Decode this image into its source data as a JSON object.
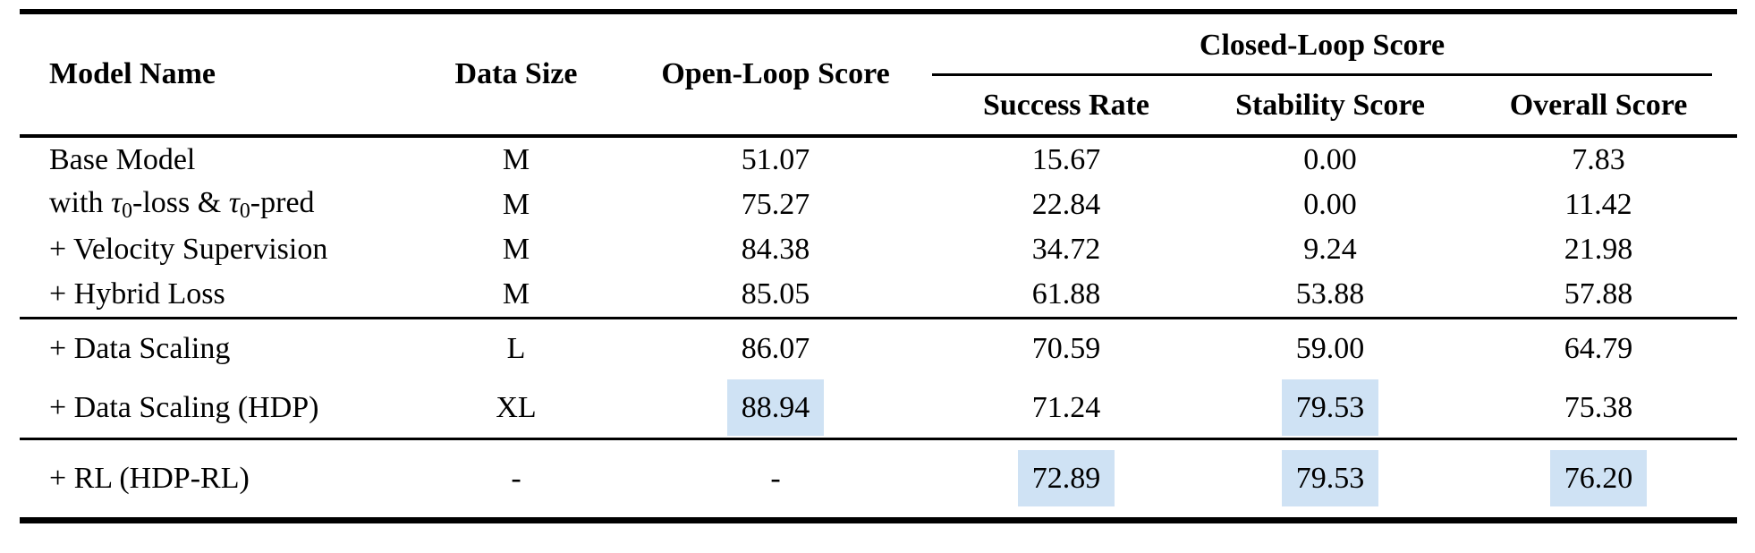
{
  "table": {
    "columns": [
      "Model Name",
      "Data Size",
      "Open-Loop Score"
    ],
    "spanner": "Closed-Loop Score",
    "sub_columns": [
      "Success Rate",
      "Stability Score",
      "Overall Score"
    ],
    "highlight_color": "#cfe2f4",
    "groups": [
      {
        "rows": [
          {
            "model": [
              {
                "t": "Base Model"
              }
            ],
            "cells": [
              {
                "value": "M"
              },
              {
                "value": "51.07"
              },
              {
                "value": "15.67"
              },
              {
                "value": "0.00"
              },
              {
                "value": "7.83"
              }
            ]
          },
          {
            "model": [
              {
                "t": "with "
              },
              {
                "t": "τ",
                "style": "tau"
              },
              {
                "t": "0",
                "style": "sub"
              },
              {
                "t": "-loss & "
              },
              {
                "t": "τ",
                "style": "tau"
              },
              {
                "t": "0",
                "style": "sub"
              },
              {
                "t": "-pred"
              }
            ],
            "cells": [
              {
                "value": "M"
              },
              {
                "value": "75.27"
              },
              {
                "value": "22.84"
              },
              {
                "value": "0.00"
              },
              {
                "value": "11.42"
              }
            ]
          },
          {
            "model": [
              {
                "t": "+ Velocity Supervision"
              }
            ],
            "cells": [
              {
                "value": "M"
              },
              {
                "value": "84.38"
              },
              {
                "value": "34.72"
              },
              {
                "value": "9.24"
              },
              {
                "value": "21.98"
              }
            ]
          },
          {
            "model": [
              {
                "t": "+ Hybrid Loss"
              }
            ],
            "cells": [
              {
                "value": "M"
              },
              {
                "value": "85.05"
              },
              {
                "value": "61.88"
              },
              {
                "value": "53.88"
              },
              {
                "value": "57.88"
              }
            ]
          }
        ]
      },
      {
        "rows": [
          {
            "model": [
              {
                "t": "+ Data Scaling"
              }
            ],
            "cells": [
              {
                "value": "L"
              },
              {
                "value": "86.07"
              },
              {
                "value": "70.59"
              },
              {
                "value": "59.00"
              },
              {
                "value": "64.79"
              }
            ]
          },
          {
            "model": [
              {
                "t": "+ Data Scaling (HDP)"
              }
            ],
            "cells": [
              {
                "value": "XL"
              },
              {
                "value": "88.94",
                "highlight": true
              },
              {
                "value": "71.24"
              },
              {
                "value": "79.53",
                "highlight": true
              },
              {
                "value": "75.38"
              }
            ]
          }
        ]
      },
      {
        "rows": [
          {
            "model": [
              {
                "t": "+ RL (HDP-RL)"
              }
            ],
            "cells": [
              {
                "value": "-"
              },
              {
                "value": "-"
              },
              {
                "value": "72.89",
                "highlight": true
              },
              {
                "value": "79.53",
                "highlight": true
              },
              {
                "value": "76.20",
                "highlight": true
              }
            ]
          }
        ]
      }
    ]
  },
  "chart_data": {
    "type": "table",
    "columns": [
      "Model Name",
      "Data Size",
      "Open-Loop Score",
      "Success Rate",
      "Stability Score",
      "Overall Score"
    ],
    "column_group": {
      "label": "Closed-Loop Score",
      "spans": [
        "Success Rate",
        "Stability Score",
        "Overall Score"
      ]
    },
    "rows": [
      [
        "Base Model",
        "M",
        "51.07",
        "15.67",
        "0.00",
        "7.83"
      ],
      [
        "with τ₀-loss & τ₀-pred",
        "M",
        "75.27",
        "22.84",
        "0.00",
        "11.42"
      ],
      [
        "+ Velocity Supervision",
        "M",
        "84.38",
        "34.72",
        "9.24",
        "21.98"
      ],
      [
        "+ Hybrid Loss",
        "M",
        "85.05",
        "61.88",
        "53.88",
        "57.88"
      ],
      [
        "+ Data Scaling",
        "L",
        "86.07",
        "70.59",
        "59.00",
        "64.79"
      ],
      [
        "+ Data Scaling (HDP)",
        "XL",
        "88.94",
        "71.24",
        "79.53",
        "75.38"
      ],
      [
        "+ RL (HDP-RL)",
        "-",
        "-",
        "72.89",
        "79.53",
        "76.20"
      ]
    ],
    "highlighted_cells": [
      [
        5,
        2
      ],
      [
        5,
        4
      ],
      [
        6,
        3
      ],
      [
        6,
        4
      ],
      [
        6,
        5
      ]
    ]
  }
}
